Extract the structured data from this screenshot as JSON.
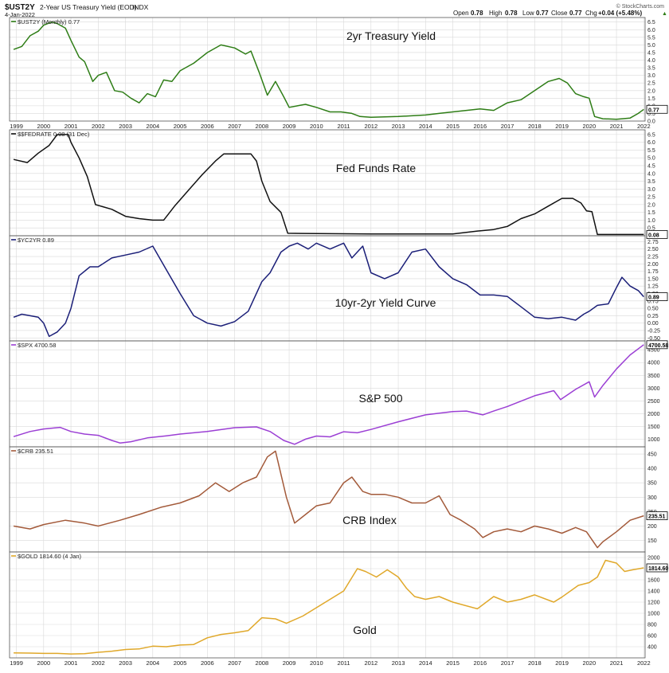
{
  "header": {
    "symbol": "$UST2Y",
    "description": "2-Year US Treasury Yield (EOD)",
    "exchange": "INDX",
    "date": "4-Jan-2022",
    "open_label": "Open",
    "open": "0.78",
    "high_label": "High",
    "high": "0.78",
    "low_label": "Low",
    "low": "0.77",
    "close_label": "Close",
    "close": "0.77",
    "chg_label": "Chg",
    "chg": "+0.04 (+5.48%)",
    "chg_arrow": "▲",
    "brand": "© StockCharts.com"
  },
  "x_axis": {
    "years": [
      "1999",
      "2000",
      "2001",
      "2002",
      "2003",
      "2004",
      "2005",
      "2006",
      "2007",
      "2008",
      "2009",
      "2010",
      "2011",
      "2012",
      "2013",
      "2014",
      "2015",
      "2016",
      "2017",
      "2018",
      "2019",
      "2020",
      "2021",
      "2022"
    ]
  },
  "colors": {
    "ust2y": "#2e7d16",
    "fedrate": "#111111",
    "yc2yr": "#1b1f78",
    "spx": "#9b3fd4",
    "crb": "#a35a3a",
    "gold": "#e0a82a",
    "grid": "#d9d9d9",
    "border": "#555555"
  },
  "chart_data": [
    {
      "type": "line",
      "legend": "$UST2Y (Monthly) 0.77",
      "title": "2yr Treasury Yield",
      "last_value": "0.77",
      "ylim": [
        0,
        6.8
      ],
      "yticks": [
        "0.0",
        "0.5",
        "1.0",
        "1.5",
        "2.0",
        "2.5",
        "3.0",
        "3.5",
        "4.0",
        "4.5",
        "5.0",
        "5.5",
        "6.0",
        "6.5"
      ],
      "x": [
        1998.9,
        1999.2,
        1999.5,
        1999.8,
        2000.0,
        2000.3,
        2000.5,
        2000.8,
        2001.0,
        2001.3,
        2001.5,
        2001.8,
        2002.0,
        2002.3,
        2002.6,
        2002.9,
        2003.2,
        2003.5,
        2003.8,
        2004.1,
        2004.4,
        2004.7,
        2005.0,
        2005.5,
        2006.0,
        2006.5,
        2007.0,
        2007.4,
        2007.6,
        2007.9,
        2008.2,
        2008.5,
        2008.8,
        2009.0,
        2009.3,
        2009.6,
        2010.0,
        2010.5,
        2010.9,
        2011.3,
        2011.6,
        2012.0,
        2013.0,
        2014.0,
        2014.5,
        2015.0,
        2015.5,
        2016.0,
        2016.5,
        2017.0,
        2017.5,
        2018.0,
        2018.5,
        2018.9,
        2019.2,
        2019.5,
        2019.8,
        2020.0,
        2020.2,
        2020.5,
        2021.0,
        2021.5,
        2021.8,
        2022.0
      ],
      "y": [
        4.7,
        4.9,
        5.6,
        5.9,
        6.3,
        6.5,
        6.4,
        6.1,
        5.3,
        4.2,
        3.9,
        2.6,
        3.0,
        3.2,
        2.0,
        1.9,
        1.5,
        1.2,
        1.8,
        1.6,
        2.7,
        2.6,
        3.3,
        3.8,
        4.5,
        5.0,
        4.8,
        4.4,
        4.6,
        3.2,
        1.7,
        2.6,
        1.6,
        0.9,
        1.0,
        1.1,
        0.9,
        0.6,
        0.6,
        0.5,
        0.3,
        0.25,
        0.3,
        0.4,
        0.5,
        0.6,
        0.7,
        0.8,
        0.7,
        1.2,
        1.4,
        2.0,
        2.6,
        2.8,
        2.5,
        1.8,
        1.6,
        1.5,
        0.3,
        0.15,
        0.12,
        0.2,
        0.5,
        0.77
      ]
    },
    {
      "type": "line",
      "legend": "$$FEDRATE 0.08 (31 Dec)",
      "title": "Fed Funds Rate",
      "last_value": "0.08",
      "ylim": [
        0,
        6.8
      ],
      "yticks": [
        "0.5",
        "1.0",
        "1.5",
        "2.0",
        "2.5",
        "3.0",
        "3.5",
        "4.0",
        "4.5",
        "5.0",
        "5.5",
        "6.0",
        "6.5"
      ],
      "x": [
        1998.9,
        1999.4,
        1999.8,
        2000.2,
        2000.5,
        2000.9,
        2001.0,
        2001.3,
        2001.6,
        2001.9,
        2002.5,
        2003.0,
        2003.5,
        2004.0,
        2004.4,
        2004.8,
        2005.3,
        2005.8,
        2006.3,
        2006.6,
        2007.0,
        2007.6,
        2007.8,
        2008.0,
        2008.3,
        2008.7,
        2008.95,
        2009.5,
        2012.0,
        2015.0,
        2015.9,
        2016.5,
        2017.0,
        2017.5,
        2018.0,
        2018.5,
        2019.0,
        2019.4,
        2019.7,
        2019.9,
        2020.1,
        2020.3,
        2021.0,
        2022.0
      ],
      "y": [
        4.9,
        4.7,
        5.3,
        5.8,
        6.5,
        6.5,
        6.0,
        5.0,
        3.8,
        2.0,
        1.7,
        1.25,
        1.1,
        1.0,
        1.0,
        1.9,
        2.9,
        3.9,
        4.8,
        5.25,
        5.25,
        5.25,
        4.8,
        3.5,
        2.2,
        1.5,
        0.16,
        0.15,
        0.12,
        0.12,
        0.3,
        0.4,
        0.6,
        1.1,
        1.4,
        1.9,
        2.4,
        2.4,
        2.1,
        1.6,
        1.55,
        0.08,
        0.08,
        0.08
      ]
    },
    {
      "type": "line",
      "legend": "$YC2YR 0.89",
      "title": "10yr-2yr Yield Curve",
      "last_value": "0.89",
      "ylim": [
        -0.6,
        2.95
      ],
      "yticks": [
        "-0.50",
        "-0.25",
        "0.00",
        "0.25",
        "0.50",
        "0.75",
        "1.00",
        "1.25",
        "1.50",
        "1.75",
        "2.00",
        "2.25",
        "2.50",
        "2.75"
      ],
      "x": [
        1998.9,
        1999.2,
        1999.5,
        1999.8,
        2000.0,
        2000.2,
        2000.5,
        2000.8,
        2001.0,
        2001.3,
        2001.7,
        2002.0,
        2002.5,
        2003.0,
        2003.5,
        2004.0,
        2004.5,
        2005.0,
        2005.5,
        2006.0,
        2006.5,
        2007.0,
        2007.5,
        2008.0,
        2008.3,
        2008.7,
        2009.0,
        2009.3,
        2009.7,
        2010.0,
        2010.5,
        2011.0,
        2011.3,
        2011.7,
        2012.0,
        2012.5,
        2013.0,
        2013.5,
        2014.0,
        2014.5,
        2015.0,
        2015.5,
        2016.0,
        2016.5,
        2017.0,
        2017.5,
        2018.0,
        2018.5,
        2019.0,
        2019.5,
        2019.8,
        2020.0,
        2020.3,
        2020.7,
        2021.0,
        2021.2,
        2021.5,
        2021.8,
        2022.0
      ],
      "y": [
        0.2,
        0.3,
        0.25,
        0.2,
        0.0,
        -0.45,
        -0.3,
        0.0,
        0.5,
        1.6,
        1.9,
        1.9,
        2.2,
        2.3,
        2.4,
        2.6,
        1.8,
        1.0,
        0.25,
        0.0,
        -0.1,
        0.05,
        0.4,
        1.4,
        1.7,
        2.4,
        2.6,
        2.7,
        2.5,
        2.7,
        2.5,
        2.7,
        2.2,
        2.6,
        1.7,
        1.5,
        1.7,
        2.4,
        2.5,
        1.9,
        1.5,
        1.3,
        0.95,
        0.95,
        0.9,
        0.55,
        0.2,
        0.15,
        0.2,
        0.1,
        0.3,
        0.4,
        0.6,
        0.65,
        1.2,
        1.55,
        1.25,
        1.1,
        0.89
      ]
    },
    {
      "type": "line",
      "legend": "$SPX 4700.58",
      "title": "S&P 500",
      "last_value": "4700.58",
      "ylim": [
        700,
        4850
      ],
      "yticks": [
        "1000",
        "1500",
        "2000",
        "2500",
        "3000",
        "3500",
        "4000",
        "4500"
      ],
      "x": [
        1998.9,
        1999.5,
        2000.0,
        2000.6,
        2001.0,
        2001.5,
        2002.0,
        2002.5,
        2002.8,
        2003.2,
        2003.8,
        2004.5,
        2005.0,
        2006.0,
        2007.0,
        2007.8,
        2008.3,
        2008.8,
        2009.2,
        2009.6,
        2010.0,
        2010.5,
        2011.0,
        2011.5,
        2012.0,
        2013.0,
        2014.0,
        2015.0,
        2015.5,
        2016.1,
        2016.5,
        2017.0,
        2018.0,
        2018.7,
        2018.95,
        2019.5,
        2020.0,
        2020.2,
        2020.5,
        2021.0,
        2021.5,
        2022.0
      ],
      "y": [
        1100,
        1300,
        1400,
        1460,
        1300,
        1200,
        1150,
        950,
        850,
        900,
        1050,
        1130,
        1200,
        1300,
        1450,
        1480,
        1300,
        950,
        800,
        1000,
        1120,
        1090,
        1290,
        1250,
        1380,
        1680,
        1950,
        2080,
        2100,
        1950,
        2100,
        2280,
        2700,
        2900,
        2550,
        2950,
        3250,
        2650,
        3100,
        3750,
        4300,
        4700
      ]
    },
    {
      "type": "line",
      "legend": "$CRB 235.51",
      "title": "CRB Index",
      "last_value": "235.51",
      "ylim": [
        110,
        475
      ],
      "yticks": [
        "150",
        "200",
        "250",
        "300",
        "350",
        "400",
        "450"
      ],
      "x": [
        1998.9,
        1999.5,
        2000.0,
        2000.8,
        2001.5,
        2002.0,
        2002.8,
        2003.5,
        2004.3,
        2005.0,
        2005.7,
        2006.3,
        2006.8,
        2007.3,
        2007.8,
        2008.2,
        2008.5,
        2008.9,
        2009.2,
        2009.6,
        2010.0,
        2010.5,
        2011.0,
        2011.3,
        2011.7,
        2012.0,
        2012.5,
        2013.0,
        2013.5,
        2014.0,
        2014.5,
        2014.9,
        2015.3,
        2015.8,
        2016.1,
        2016.5,
        2017.0,
        2017.5,
        2018.0,
        2018.5,
        2019.0,
        2019.5,
        2019.9,
        2020.3,
        2020.5,
        2021.0,
        2021.5,
        2022.0
      ],
      "y": [
        200,
        190,
        205,
        220,
        210,
        200,
        220,
        240,
        265,
        280,
        305,
        350,
        320,
        350,
        370,
        440,
        460,
        300,
        210,
        240,
        270,
        280,
        350,
        370,
        320,
        310,
        310,
        300,
        280,
        280,
        305,
        240,
        220,
        190,
        160,
        180,
        190,
        180,
        200,
        190,
        175,
        195,
        180,
        125,
        145,
        180,
        220,
        235.51
      ]
    },
    {
      "type": "line",
      "legend": "$GOLD 1814.60 (4 Jan)",
      "title": "Gold",
      "last_value": "1814.60",
      "ylim": [
        200,
        2100
      ],
      "yticks": [
        "400",
        "600",
        "800",
        "1000",
        "1200",
        "1400",
        "1600",
        "1800",
        "2000"
      ],
      "x": [
        1998.9,
        1999.5,
        2000.0,
        2000.5,
        2001.0,
        2001.5,
        2002.0,
        2002.5,
        2003.0,
        2003.5,
        2004.0,
        2004.5,
        2005.0,
        2005.5,
        2006.0,
        2006.5,
        2007.0,
        2007.5,
        2008.0,
        2008.5,
        2008.9,
        2009.5,
        2010.0,
        2010.5,
        2011.0,
        2011.5,
        2011.8,
        2012.2,
        2012.6,
        2013.0,
        2013.3,
        2013.6,
        2014.0,
        2014.5,
        2015.0,
        2015.9,
        2016.5,
        2017.0,
        2017.5,
        2018.0,
        2018.7,
        2019.0,
        2019.6,
        2020.0,
        2020.3,
        2020.6,
        2021.0,
        2021.3,
        2021.6,
        2022.0
      ],
      "y": [
        290,
        285,
        280,
        280,
        270,
        275,
        300,
        320,
        350,
        360,
        410,
        400,
        430,
        440,
        560,
        620,
        650,
        690,
        920,
        900,
        820,
        950,
        1100,
        1250,
        1400,
        1800,
        1750,
        1650,
        1780,
        1650,
        1450,
        1300,
        1250,
        1300,
        1200,
        1080,
        1300,
        1200,
        1250,
        1330,
        1200,
        1290,
        1500,
        1550,
        1650,
        1950,
        1900,
        1750,
        1780,
        1814.6
      ]
    }
  ]
}
